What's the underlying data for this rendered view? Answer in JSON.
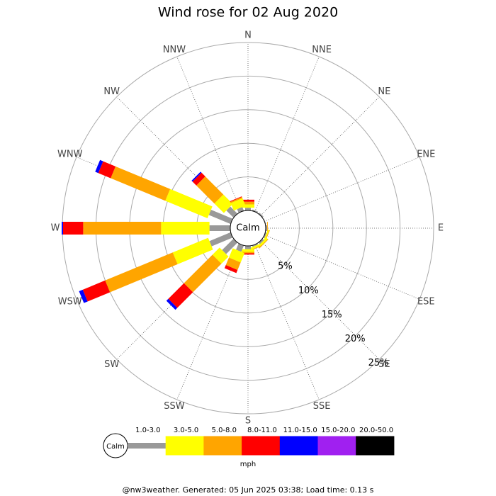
{
  "chart_data": {
    "type": "windrose",
    "title": "Wind rose for 02 Aug 2020",
    "calm_label": "Calm",
    "categories": [
      "N",
      "NNE",
      "NE",
      "ENE",
      "E",
      "ESE",
      "SE",
      "SSE",
      "S",
      "SSW",
      "SW",
      "WSW",
      "W",
      "WNW",
      "NW",
      "NNW"
    ],
    "series": [
      {
        "name": "1.0-3.0",
        "color": "#999999",
        "values": [
          0.4,
          0.2,
          0.2,
          0.1,
          0.2,
          0.2,
          0.3,
          0.2,
          0.5,
          1.0,
          2.4,
          3.4,
          3.1,
          3.5,
          1.5,
          0.6
        ]
      },
      {
        "name": "3.0-5.0",
        "color": "#ffff00",
        "values": [
          0.5,
          0,
          0,
          0,
          0,
          0.2,
          0.3,
          0.3,
          0.4,
          1.5,
          1.5,
          5.7,
          7.2,
          6.8,
          2.0,
          1.2
        ]
      },
      {
        "name": "5.0-8.0",
        "color": "#ffa500",
        "values": [
          0.4,
          0,
          0,
          0,
          0.1,
          0.1,
          0.1,
          0.1,
          0.2,
          1.2,
          6.0,
          10.9,
          11.6,
          8.8,
          3.8,
          0.2
        ]
      },
      {
        "name": "8.0-11.0",
        "color": "#ff0000",
        "values": [
          0.3,
          0,
          0,
          0,
          0,
          0,
          0,
          0,
          0.2,
          0.5,
          3.3,
          3.6,
          3.0,
          2.0,
          0.8,
          0.1
        ]
      },
      {
        "name": "11.0-15.0",
        "color": "#0000ff",
        "values": [
          0,
          0,
          0,
          0,
          0,
          0,
          0,
          0,
          0,
          0,
          0.4,
          0.6,
          0.2,
          0.5,
          0.2,
          0
        ]
      },
      {
        "name": "15.0-20.0",
        "color": "#a020f0",
        "values": [
          0,
          0,
          0,
          0,
          0,
          0,
          0,
          0,
          0,
          0,
          0,
          0,
          0,
          0,
          0,
          0
        ]
      },
      {
        "name": "20.0-50.0",
        "color": "#000000",
        "values": [
          0,
          0,
          0,
          0,
          0,
          0,
          0,
          0,
          0,
          0,
          0,
          0,
          0,
          0,
          0,
          0
        ]
      }
    ],
    "rlim": [
      0,
      25
    ],
    "rticks": [
      {
        "value": 5,
        "label": "5%"
      },
      {
        "value": 10,
        "label": "10%"
      },
      {
        "value": 15,
        "label": "15%"
      },
      {
        "value": 20,
        "label": "20%"
      },
      {
        "value": 25,
        "label": "25%"
      }
    ],
    "legend_unit": "mph"
  },
  "footer": "@nw3weather. Generated: 05 Jun 2025 03:38; Load time: 0.13 s"
}
